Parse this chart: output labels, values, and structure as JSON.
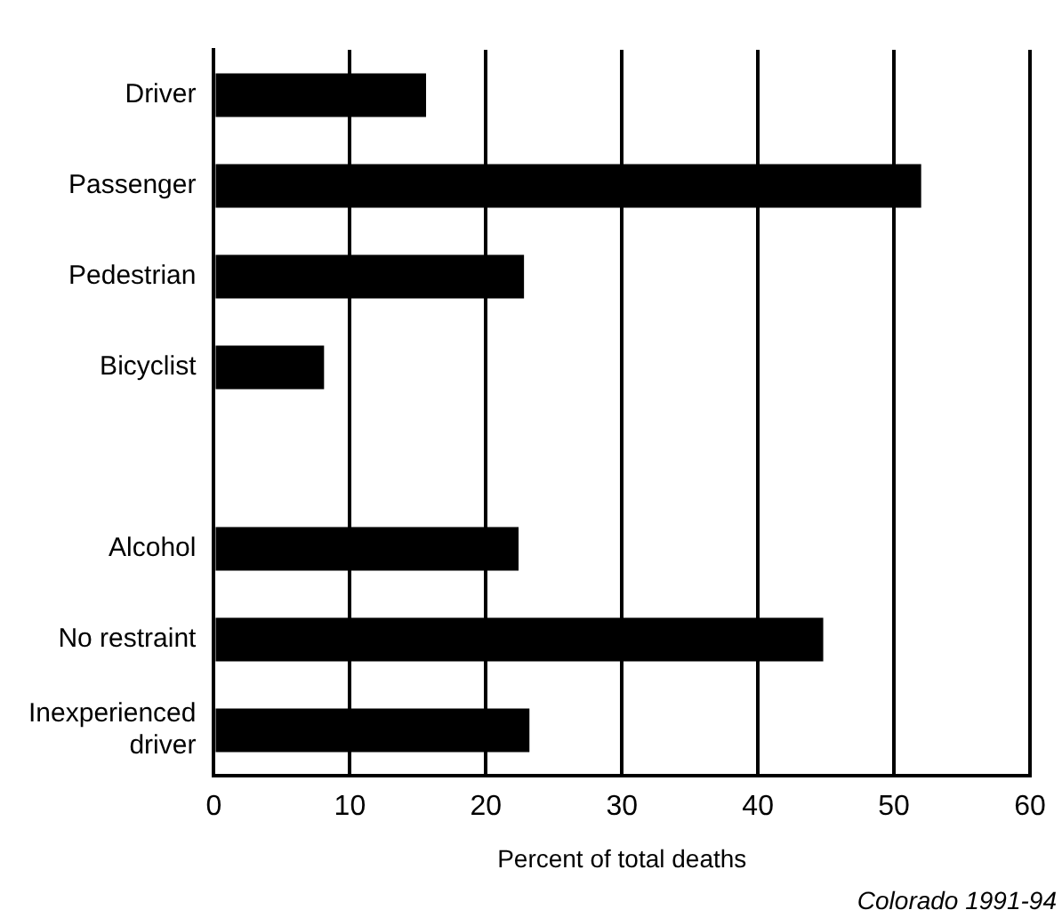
{
  "chart_data": {
    "type": "bar",
    "orientation": "horizontal",
    "xlabel": "Percent of total deaths",
    "categories": [
      "Driver",
      "Passenger",
      "Pedestrian",
      "Bicyclist",
      null,
      "Alcohol",
      "No restraint",
      "Inexperienced driver"
    ],
    "values": [
      15.6,
      52.0,
      22.8,
      8.1,
      null,
      22.4,
      44.8,
      23.2
    ],
    "color": "#000000",
    "xlim": [
      0,
      60
    ],
    "xticks": [
      0,
      10,
      20,
      30,
      40,
      50,
      60
    ],
    "grid": "x",
    "legend": false,
    "annotations": [
      "Colorado 1991-94"
    ]
  }
}
